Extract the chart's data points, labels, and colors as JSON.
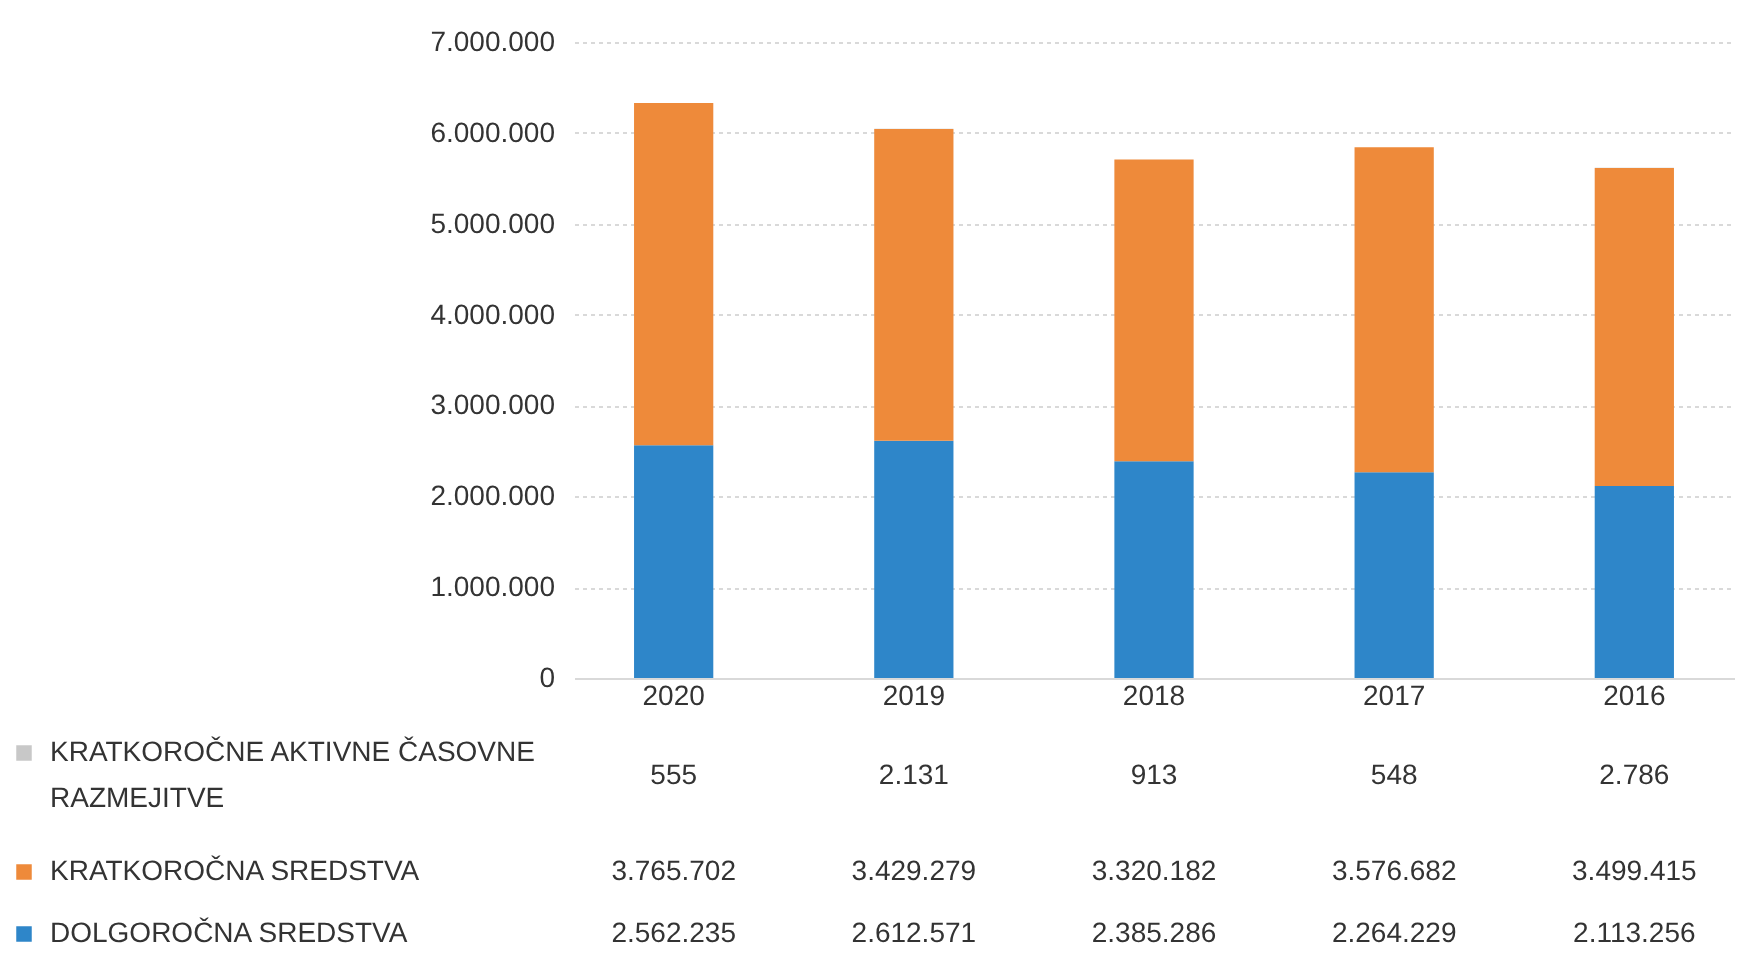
{
  "chart_data": {
    "type": "bar",
    "stacked": true,
    "categories": [
      "2020",
      "2019",
      "2018",
      "2017",
      "2016"
    ],
    "series": [
      {
        "name": "DOLGOROČNA SREDSTVA",
        "color": "#2e86c9",
        "values": [
          2562235,
          2612571,
          2385286,
          2264229,
          2113256
        ],
        "value_labels": [
          "2.562.235",
          "2.612.571",
          "2.385.286",
          "2.264.229",
          "2.113.256"
        ]
      },
      {
        "name": "KRATKOROČNA SREDSTVA",
        "color": "#ee8a3a",
        "values": [
          3765702,
          3429279,
          3320182,
          3576682,
          3499415
        ],
        "value_labels": [
          "3.765.702",
          "3.429.279",
          "3.320.182",
          "3.576.682",
          "3.499.415"
        ]
      },
      {
        "name": "KRATKOROČNE AKTIVNE ČASOVNE RAZMEJITVE",
        "color": "#c8c8c8",
        "values": [
          555,
          2131,
          913,
          548,
          2786
        ],
        "value_labels": [
          "555",
          "2.131",
          "913",
          "548",
          "2.786"
        ]
      }
    ],
    "ylim": [
      0,
      7000000
    ],
    "yticks": [
      {
        "value": 0,
        "label": "0"
      },
      {
        "value": 1000000,
        "label": "1.000.000"
      },
      {
        "value": 2000000,
        "label": "2.000.000"
      },
      {
        "value": 3000000,
        "label": "3.000.000"
      },
      {
        "value": 4000000,
        "label": "4.000.000"
      },
      {
        "value": 5000000,
        "label": "5.000.000"
      },
      {
        "value": 6000000,
        "label": "6.000.000"
      },
      {
        "value": 7000000,
        "label": "7.000.000"
      }
    ],
    "grid": "y",
    "legend": "bottom left"
  }
}
